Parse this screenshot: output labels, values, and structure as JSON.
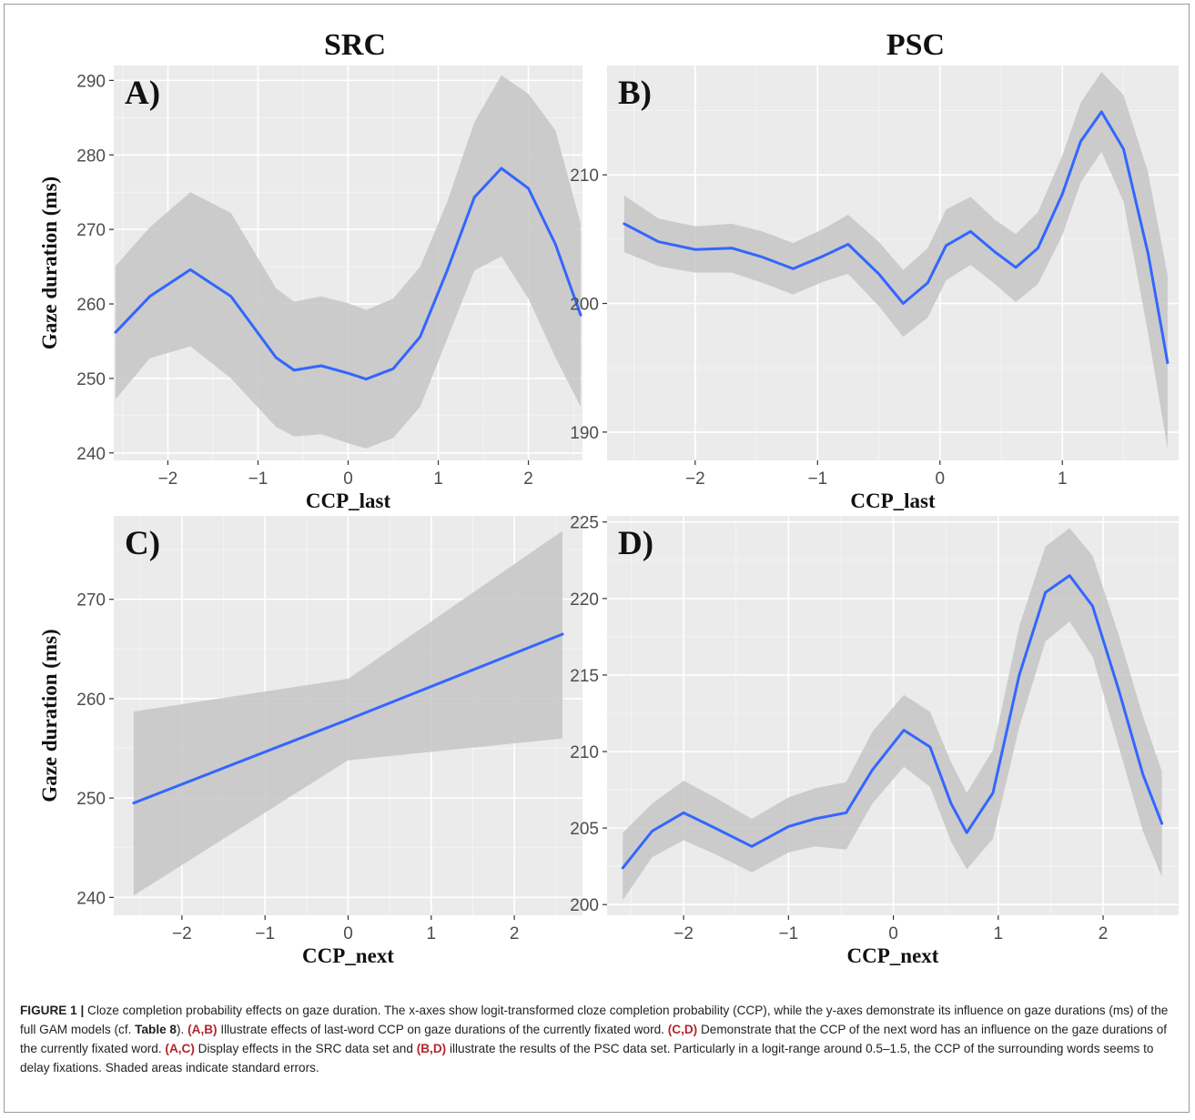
{
  "column_titles": [
    "SRC",
    "PSC"
  ],
  "colors": {
    "panel_bg": "#ebebeb",
    "grid_major": "#ffffff",
    "ribbon": "#c6c6c6",
    "line": "#3366ff",
    "caption_ref": "#b3262b"
  },
  "chart_data": [
    {
      "panel": "A)",
      "type": "line",
      "xlabel": "CCP_last",
      "ylabel": "Gaze duration (ms)",
      "xlim": [
        -2.6,
        2.6
      ],
      "ylim": [
        239,
        292
      ],
      "xticks": [
        -2,
        -1,
        0,
        1,
        2
      ],
      "yticks": [
        240,
        250,
        260,
        270,
        280,
        290
      ],
      "grid": true,
      "series": [
        {
          "x": [
            -2.58,
            -2.2,
            -1.75,
            -1.3,
            -0.8,
            -0.6,
            -0.3,
            0.0,
            0.2,
            0.5,
            0.8,
            1.1,
            1.4,
            1.7,
            2.0,
            2.3,
            2.58
          ],
          "y": [
            256.2,
            261.0,
            264.6,
            261.0,
            252.8,
            251.1,
            251.7,
            250.7,
            249.9,
            251.3,
            255.6,
            264.5,
            274.3,
            278.2,
            275.5,
            268.0,
            258.5
          ],
          "lower": [
            247.2,
            252.7,
            254.3,
            250.0,
            243.5,
            242.2,
            242.5,
            241.3,
            240.6,
            242.0,
            246.2,
            255.3,
            264.5,
            266.4,
            260.7,
            252.8,
            246.2
          ],
          "upper": [
            265.1,
            270.3,
            275.0,
            272.2,
            262.1,
            260.3,
            261.0,
            260.1,
            259.2,
            260.7,
            265.0,
            273.7,
            284.4,
            290.7,
            288.2,
            283.3,
            270.8
          ]
        }
      ]
    },
    {
      "panel": "B)",
      "type": "line",
      "xlabel": "CCP_last",
      "ylabel": "",
      "xlim": [
        -2.72,
        1.95
      ],
      "ylim": [
        187.8,
        218.5
      ],
      "xticks": [
        -2,
        -1,
        0,
        1,
        2
      ],
      "yticks": [
        190,
        200,
        210
      ],
      "grid": true,
      "series": [
        {
          "x": [
            -2.58,
            -2.3,
            -2.0,
            -1.7,
            -1.45,
            -1.2,
            -0.95,
            -0.75,
            -0.5,
            -0.3,
            -0.1,
            0.05,
            0.25,
            0.45,
            0.62,
            0.8,
            1.0,
            1.15,
            1.32,
            1.5,
            1.7,
            1.86
          ],
          "y": [
            206.2,
            204.8,
            204.2,
            204.3,
            203.6,
            202.7,
            203.7,
            204.6,
            202.3,
            200.0,
            201.6,
            204.5,
            205.6,
            204.0,
            202.8,
            204.3,
            208.5,
            212.6,
            214.9,
            212.0,
            203.9,
            195.4
          ],
          "lower": [
            204.0,
            202.9,
            202.4,
            202.4,
            201.6,
            200.7,
            201.7,
            202.3,
            199.8,
            197.4,
            198.9,
            201.8,
            203.0,
            201.5,
            200.1,
            201.5,
            205.3,
            209.4,
            211.8,
            207.9,
            197.7,
            188.7
          ],
          "upper": [
            208.4,
            206.6,
            206.0,
            206.2,
            205.6,
            204.7,
            205.8,
            206.9,
            204.8,
            202.6,
            204.3,
            207.3,
            208.3,
            206.5,
            205.4,
            207.1,
            211.5,
            215.6,
            218.0,
            216.2,
            210.2,
            202.2
          ]
        }
      ]
    },
    {
      "panel": "C)",
      "type": "line",
      "xlabel": "CCP_next",
      "ylabel": "Gaze duration (ms)",
      "xlim": [
        -2.82,
        2.82
      ],
      "ylim": [
        238.2,
        278.4
      ],
      "xticks": [
        -2,
        -1,
        0,
        1,
        2
      ],
      "yticks": [
        240,
        250,
        260,
        270
      ],
      "grid": true,
      "series": [
        {
          "x": [
            -2.58,
            0,
            2.58
          ],
          "y": [
            249.5,
            257.9,
            266.5
          ],
          "lower": [
            240.2,
            253.8,
            256.0
          ],
          "upper": [
            258.7,
            262.0,
            276.9
          ]
        }
      ]
    },
    {
      "panel": "D)",
      "type": "line",
      "xlabel": "CCP_next",
      "ylabel": "",
      "xlim": [
        -2.73,
        2.72
      ],
      "ylim": [
        199.3,
        225.4
      ],
      "xticks": [
        -2,
        -1,
        0,
        1,
        2
      ],
      "yticks": [
        200,
        205,
        210,
        215,
        220,
        225
      ],
      "grid": true,
      "series": [
        {
          "x": [
            -2.58,
            -2.3,
            -2.0,
            -1.7,
            -1.35,
            -1.0,
            -0.75,
            -0.45,
            -0.2,
            0.1,
            0.35,
            0.55,
            0.7,
            0.95,
            1.2,
            1.45,
            1.68,
            1.9,
            2.15,
            2.38,
            2.56
          ],
          "y": [
            202.4,
            204.8,
            206.0,
            205.0,
            203.8,
            205.1,
            205.6,
            206.0,
            208.8,
            211.4,
            210.3,
            206.6,
            204.7,
            207.3,
            215.0,
            220.4,
            221.5,
            219.5,
            214.0,
            208.5,
            205.3
          ],
          "lower": [
            200.3,
            203.1,
            204.2,
            203.3,
            202.1,
            203.4,
            203.8,
            203.6,
            206.6,
            209.0,
            207.7,
            204.1,
            202.3,
            204.3,
            211.6,
            217.2,
            218.5,
            216.2,
            210.3,
            204.8,
            201.8
          ],
          "upper": [
            204.7,
            206.6,
            208.1,
            207.0,
            205.6,
            207.0,
            207.6,
            208.0,
            211.3,
            213.7,
            212.6,
            209.3,
            207.3,
            210.1,
            218.2,
            223.4,
            224.6,
            222.8,
            217.6,
            212.3,
            208.7
          ]
        }
      ]
    }
  ],
  "caption": {
    "label": "FIGURE 1 |",
    "p1": " Cloze completion probability effects on gaze duration. The x-axes show logit-transformed cloze completion probability (CCP), while the y-axes demonstrate its influence on gaze durations (ms) of the full GAM models (cf. ",
    "table_ref": "Table 8",
    "p2": "). ",
    "ref_ab": "(A,B)",
    "p3": " Illustrate effects of last-word CCP on gaze durations of the currently fixated word. ",
    "ref_cd": "(C,D)",
    "p4": " Demonstrate that the CCP of the next word has an influence on the gaze durations of the currently fixated word. ",
    "ref_ac": "(A,C)",
    "p5": " Display effects in the SRC data set and ",
    "ref_bd": "(B,D)",
    "p6": " illustrate the results of the PSC data set. Particularly in a logit-range around 0.5–1.5, the CCP of the surrounding words seems to delay fixations. Shaded areas indicate standard errors."
  }
}
